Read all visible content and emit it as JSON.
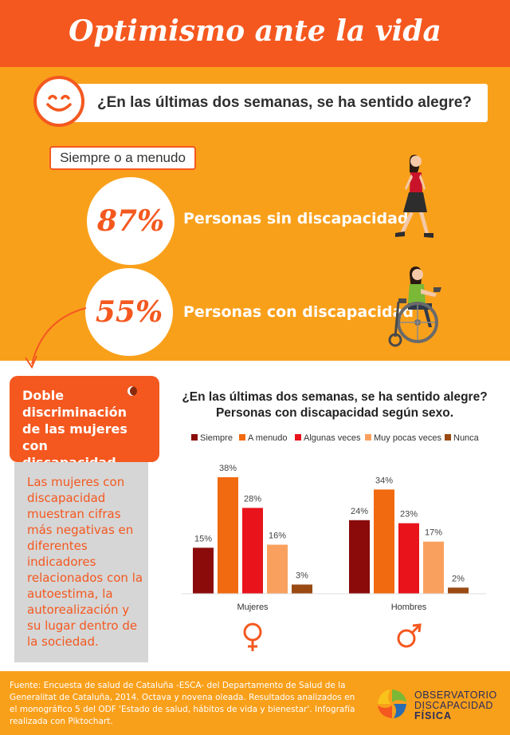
{
  "header": {
    "title": "Optimismo ante la vida"
  },
  "question": {
    "text": "¿En las últimas dos semanas, se ha sentido alegre?"
  },
  "frequency_tag": "Siempre o a menudo",
  "groups": [
    {
      "percent": "87%",
      "label": "Personas sin discapacidad"
    },
    {
      "percent": "55%",
      "label": "Personas con discapacidad"
    }
  ],
  "side_box": {
    "title": "Doble discriminación de las mujeres con discapacidad",
    "body": "Las mujeres con discapacidad muestran cifras más negativas en diferentes indicadores relacionados con la autoestima, la autorealización y su lugar dentro de la sociedad."
  },
  "footer": {
    "source": "Fuente: Encuesta de salud de Cataluña -ESCA- del Departamento de Salud de la Generalitat de Cataluña, 2014. Octava y novena oleada. Resultados analizados en el monográfico 5 del ODF 'Estado de salud, hábitos de vida y bienestar'. Infografía realizada con Piktochart.",
    "logo_line1": "OBSERVATORIO",
    "logo_line2": "DISCAPACIDAD",
    "logo_line3": "FÍSICA"
  },
  "colors": {
    "accent": "#f4581f",
    "panel": "#f9a01b"
  },
  "chart_data": {
    "type": "bar",
    "title": "¿En las últimas dos semanas, se ha sentido alegre? Personas con discapacidad según sexo.",
    "title_line1": "¿En las últimas dos semanas, se ha sentido alegre?",
    "title_line2": "Personas con discapacidad según sexo.",
    "categories": [
      "Mujeres",
      "Hombres"
    ],
    "category_icons": [
      "female-symbol-icon",
      "male-symbol-icon"
    ],
    "series": [
      {
        "name": "Siempre",
        "color": "#8b0b0b",
        "values": [
          15,
          24
        ]
      },
      {
        "name": "A menudo",
        "color": "#f26a10",
        "values": [
          38,
          34
        ]
      },
      {
        "name": "Algunas veces",
        "color": "#e8131b",
        "values": [
          28,
          23
        ]
      },
      {
        "name": "Muy pocas veces",
        "color": "#f9a05e",
        "values": [
          16,
          17
        ]
      },
      {
        "name": "Nunca",
        "color": "#9a4a12",
        "values": [
          3,
          2
        ]
      }
    ],
    "value_suffix": "%",
    "ylim": [
      0,
      40
    ],
    "legend_position": "top",
    "grid": false
  }
}
